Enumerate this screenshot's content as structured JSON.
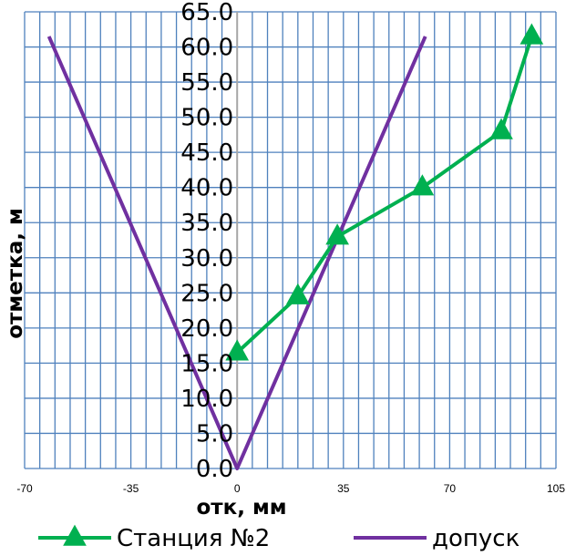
{
  "chart_data": {
    "type": "line",
    "title": "",
    "xlabel": "отк, мм",
    "ylabel": "отметка, м",
    "xlim": [
      -70,
      105
    ],
    "ylim": [
      0,
      65
    ],
    "x_ticks": [
      "-70",
      "-35",
      "0",
      "35",
      "70",
      "105"
    ],
    "y_ticks": [
      "0.0",
      "5.0",
      "10.0",
      "15.0",
      "20.0",
      "25.0",
      "30.0",
      "35.0",
      "40.0",
      "45.0",
      "50.0",
      "55.0",
      "60.0",
      "65.0"
    ],
    "grid": true,
    "legend": "bottom",
    "series": [
      {
        "name": "Станция №2",
        "color": "#00b050",
        "marker": "triangle",
        "points": [
          [
            0,
            16.5
          ],
          [
            20,
            24.5
          ],
          [
            33,
            33
          ],
          [
            61,
            40
          ],
          [
            87,
            48
          ],
          [
            97,
            61.5
          ]
        ]
      },
      {
        "name": "допуск",
        "color": "#7030a0",
        "marker": "none",
        "points": [
          [
            -62,
            61.5
          ],
          [
            0,
            0
          ],
          [
            62,
            61.5
          ]
        ]
      }
    ],
    "colors": {
      "grid": "#4f81bd",
      "zero_axis": "#a6a6a6"
    }
  }
}
